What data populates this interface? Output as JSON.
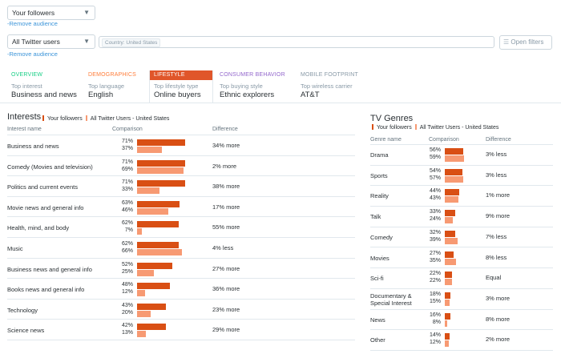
{
  "audience": {
    "primary_select": "Your followers",
    "primary_remove": "-Remove audience",
    "secondary_select": "All Twitter users",
    "secondary_remove": "-Remove audience",
    "country_tag": "Country: United States",
    "open_filters": "Open filters"
  },
  "tabs": [
    {
      "name": "OVERVIEW",
      "sub": "Top interest",
      "value": "Business and news",
      "color": "#19cf86",
      "active": false
    },
    {
      "name": "DEMOGRAPHICS",
      "sub": "Top language",
      "value": "English",
      "color": "#ff7d3a",
      "active": false
    },
    {
      "name": "LIFESTYLE",
      "sub": "Top lifestyle type",
      "value": "Online buyers",
      "color": "#e0562a",
      "active": true
    },
    {
      "name": "CONSUMER BEHAVIOR",
      "sub": "Top buying style",
      "value": "Ethnic explorers",
      "color": "#9266cc",
      "active": false
    },
    {
      "name": "MOBILE FOOTPRINT",
      "sub": "Top wireless carrier",
      "value": "AT&T",
      "color": "#8899a6",
      "active": false
    }
  ],
  "interests": {
    "title": "Interests",
    "legend_a": "Your followers",
    "legend_b": "All Twitter Users - United States",
    "col_name": "Interest name",
    "col_comparison": "Comparison",
    "col_difference": "Difference",
    "rows": [
      {
        "name": "Business and news",
        "a": 71,
        "b": 37,
        "diff": "34% more"
      },
      {
        "name": "Comedy (Movies and television)",
        "a": 71,
        "b": 69,
        "diff": "2% more"
      },
      {
        "name": "Politics and current events",
        "a": 71,
        "b": 33,
        "diff": "38% more"
      },
      {
        "name": "Movie news and general info",
        "a": 63,
        "b": 46,
        "diff": "17% more"
      },
      {
        "name": "Health, mind, and body",
        "a": 62,
        "b": 7,
        "diff": "55% more"
      },
      {
        "name": "Music",
        "a": 62,
        "b": 66,
        "diff": "4% less"
      },
      {
        "name": "Business news and general info",
        "a": 52,
        "b": 25,
        "diff": "27% more"
      },
      {
        "name": "Books news and general info",
        "a": 48,
        "b": 12,
        "diff": "36% more"
      },
      {
        "name": "Technology",
        "a": 43,
        "b": 20,
        "diff": "23% more"
      },
      {
        "name": "Science news",
        "a": 42,
        "b": 13,
        "diff": "29% more"
      }
    ]
  },
  "tv": {
    "title": "TV Genres",
    "legend_a": "Your followers",
    "legend_b": "All Twitter Users - United States",
    "col_name": "Genre name",
    "col_comparison": "Comparison",
    "col_difference": "Difference",
    "rows": [
      {
        "name": "Drama",
        "a": 56,
        "b": 59,
        "diff": "3% less"
      },
      {
        "name": "Sports",
        "a": 54,
        "b": 57,
        "diff": "3% less"
      },
      {
        "name": "Reality",
        "a": 44,
        "b": 43,
        "diff": "1% more"
      },
      {
        "name": "Talk",
        "a": 33,
        "b": 24,
        "diff": "9% more"
      },
      {
        "name": "Comedy",
        "a": 32,
        "b": 39,
        "diff": "7% less"
      },
      {
        "name": "Movies",
        "a": 27,
        "b": 35,
        "diff": "8% less"
      },
      {
        "name": "Sci-fi",
        "a": 22,
        "b": 22,
        "diff": "Equal"
      },
      {
        "name": "Documentary & Special Interest",
        "a": 18,
        "b": 15,
        "diff": "3% more"
      },
      {
        "name": "News",
        "a": 16,
        "b": 8,
        "diff": "8% more"
      },
      {
        "name": "Other",
        "a": 14,
        "b": 12,
        "diff": "2% more"
      }
    ]
  },
  "colors": {
    "followers": "#d94f14",
    "all_users": "#f79a73",
    "link": "#3b94d9"
  }
}
